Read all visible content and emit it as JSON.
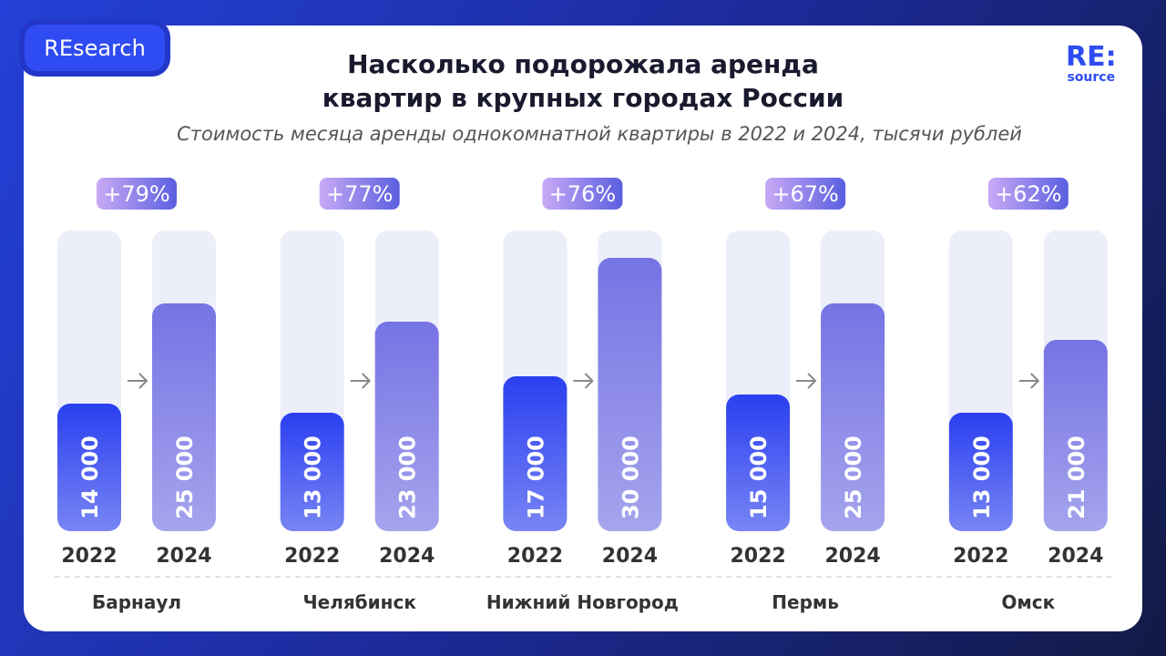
{
  "header": {
    "badge": "REsearch",
    "logo": "RE:",
    "logo_sub": "source"
  },
  "chart_data": {
    "type": "bar",
    "title": "Насколько подорожала аренда квартир в крупных городах России",
    "subtitle": "Стоимость месяца аренды однокомнатной квартиры в 2022 и 2024, тысячи рублей",
    "categories": [
      "Барнаул",
      "Челябинск",
      "Нижний Новгород",
      "Пермь",
      "Омск"
    ],
    "series": [
      {
        "name": "2022",
        "color": "#2a3ff0",
        "values": [
          14000,
          13000,
          17000,
          15000,
          13000
        ],
        "value_labels": [
          "14 000",
          "13 000",
          "17 000",
          "15 000",
          "13 000"
        ]
      },
      {
        "name": "2024",
        "color": "#7673e4",
        "values": [
          25000,
          23000,
          30000,
          25000,
          21000
        ],
        "value_labels": [
          "25 000",
          "23 000",
          "30 000",
          "25 000",
          "21 000"
        ]
      }
    ],
    "change_labels": [
      "+79%",
      "+77%",
      "+76%",
      "+67%",
      "+62%"
    ],
    "ylim": [
      0,
      33000
    ]
  }
}
